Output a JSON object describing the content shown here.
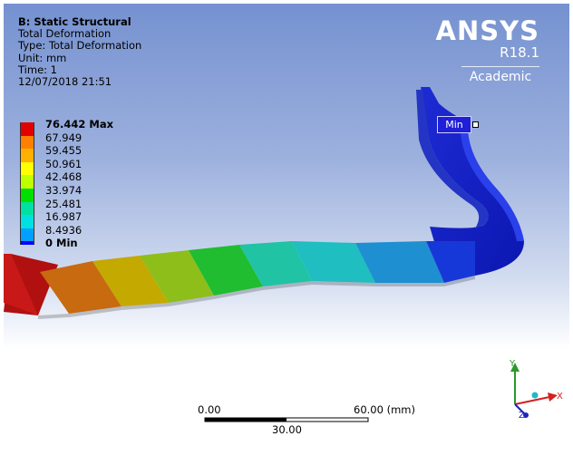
{
  "info": {
    "title": "B: Static Structural",
    "lines": [
      "Total Deformation",
      "Type: Total Deformation",
      "Unit: mm",
      "Time: 1",
      "12/07/2018 21:51"
    ]
  },
  "logo": {
    "brand": "ANSYS",
    "version": "R18.1",
    "edition": "Academic"
  },
  "legend": {
    "entries": [
      {
        "label": "76.442 Max",
        "color": "#e00000",
        "bold": true
      },
      {
        "label": "67.949",
        "color": "#ff8000"
      },
      {
        "label": "59.455",
        "color": "#ffb000"
      },
      {
        "label": "50.961",
        "color": "#ffff00"
      },
      {
        "label": "42.468",
        "color": "#c0ff00"
      },
      {
        "label": "33.974",
        "color": "#00e000"
      },
      {
        "label": "25.481",
        "color": "#00e0a0"
      },
      {
        "label": "16.987",
        "color": "#00e0e0"
      },
      {
        "label": "8.4936",
        "color": "#00a0ff"
      },
      {
        "label": "0 Min",
        "color": "#0000ff",
        "bold": true
      }
    ]
  },
  "probe": {
    "min_label": "Min"
  },
  "scale": {
    "start": "0.00",
    "end": "60.00 (mm)",
    "mid": "30.00"
  },
  "triad": {
    "x": "X",
    "y": "Y",
    "z": "Z"
  }
}
